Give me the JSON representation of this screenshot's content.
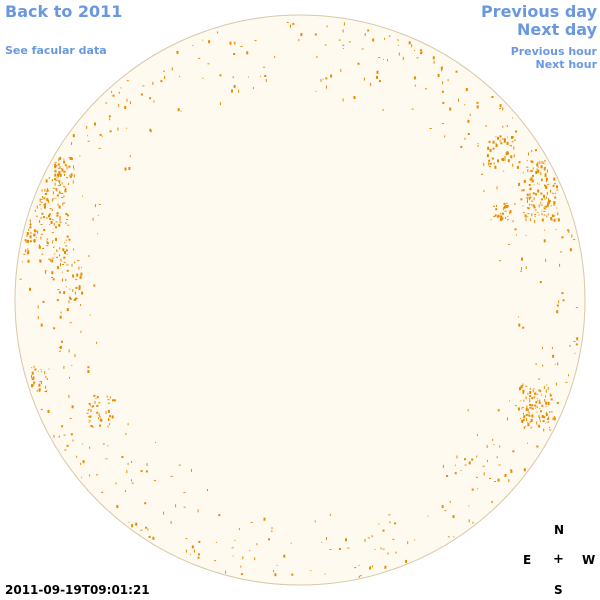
{
  "nav": {
    "back_label": "Back to 2011",
    "facular_label": "See facular data",
    "prev_day_label": "Previous day",
    "next_day_label": "Next day",
    "prev_hour_label": "Previous hour",
    "next_hour_label": "Next hour"
  },
  "compass": {
    "north": "N",
    "east": "E",
    "center": "+",
    "west": "W",
    "south": "S"
  },
  "timestamp": "2011-09-19T09:01:21",
  "colors": {
    "link": "#6a98e0",
    "disk_fill": "#fffaf0",
    "disk_border": "#d8c8a8",
    "facula": "#e88a00"
  }
}
